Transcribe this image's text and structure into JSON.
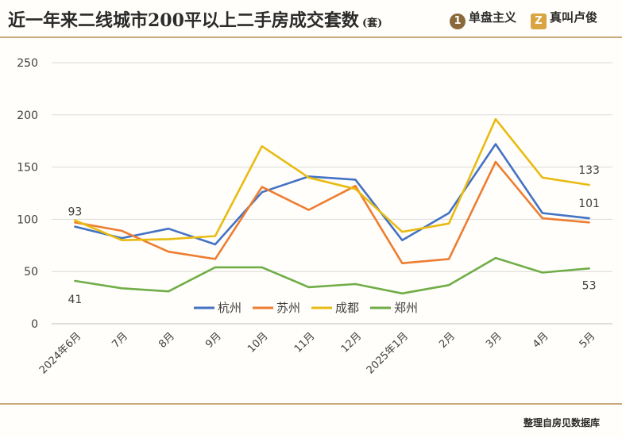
{
  "header": {
    "title": "近一年来二线城市200平以上二手房成交套数",
    "unit": "(套)",
    "brand1": "单盘主义",
    "brand2": "真叫卢俊"
  },
  "footer": {
    "source": "整理自房见数据库"
  },
  "colors": {
    "rule": "#c9a97a",
    "grid": "#d9d9d9"
  },
  "chart_data": {
    "type": "line",
    "title": "近一年来二线城市200平以上二手房成交套数",
    "xlabel": "",
    "ylabel": "",
    "ylim": [
      0,
      250
    ],
    "yticks": [
      0,
      50,
      100,
      150,
      200,
      250
    ],
    "grid": true,
    "legend_position": "bottom-center",
    "categories": [
      "2024年6月",
      "7月",
      "8月",
      "9月",
      "10月",
      "11月",
      "12月",
      "2025年1月",
      "2月",
      "3月",
      "4月",
      "5月"
    ],
    "series": [
      {
        "name": "杭州",
        "color": "#4472c4",
        "values": [
          93,
          82,
          91,
          76,
          126,
          141,
          138,
          80,
          106,
          172,
          106,
          101
        ]
      },
      {
        "name": "苏州",
        "color": "#ed7d31",
        "values": [
          97,
          89,
          69,
          62,
          131,
          109,
          132,
          58,
          62,
          155,
          101,
          97
        ]
      },
      {
        "name": "成都",
        "color": "#e8bb12",
        "values": [
          99,
          80,
          81,
          84,
          170,
          140,
          129,
          88,
          96,
          196,
          140,
          133
        ]
      },
      {
        "name": "郑州",
        "color": "#70ad47",
        "values": [
          41,
          34,
          31,
          54,
          54,
          35,
          38,
          29,
          37,
          63,
          49,
          53
        ]
      }
    ],
    "annotations": [
      {
        "series": "杭州",
        "index": 0,
        "text": "93"
      },
      {
        "series": "郑州",
        "index": 0,
        "text": "41"
      },
      {
        "series": "成都",
        "index": 11,
        "text": "133"
      },
      {
        "series": "杭州",
        "index": 11,
        "text": "101"
      },
      {
        "series": "郑州",
        "index": 11,
        "text": "53"
      }
    ]
  }
}
